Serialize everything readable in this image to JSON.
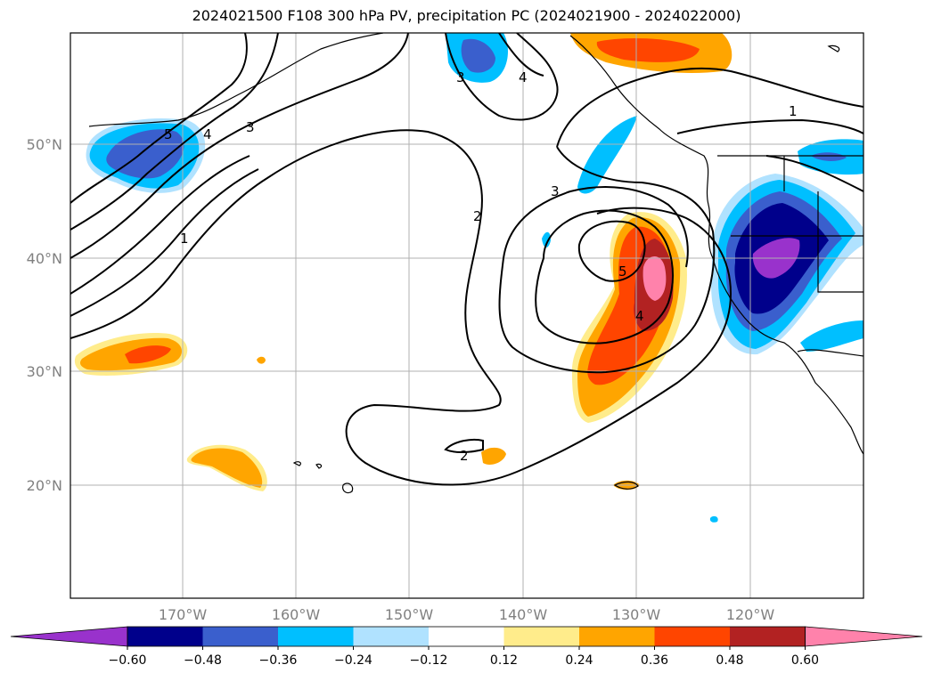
{
  "title": "2024021500 F108 300 hPa PV, precipitation PC (2024021900 - 2024022000)",
  "lat_labels": [
    "50°N",
    "40°N",
    "30°N",
    "20°N"
  ],
  "lon_labels": [
    "170°W",
    "160°W",
    "150°W",
    "140°W",
    "130°W",
    "120°W"
  ],
  "contour_labels": [
    "5",
    "4",
    "3",
    "1",
    "2",
    "3",
    "4",
    "3",
    "4",
    "5",
    "2",
    "1"
  ],
  "colorbar": {
    "ticks": [
      "−0.60",
      "−0.48",
      "−0.36",
      "−0.24",
      "−0.12",
      "0.12",
      "0.24",
      "0.36",
      "0.48",
      "0.60"
    ],
    "colors": [
      "#9932cc",
      "#00008b",
      "#3a5fcd",
      "#00bfff",
      "#b0e2ff",
      "#ffffff",
      "#ffec8b",
      "#ffa500",
      "#ff4500",
      "#b22222",
      "#ff82ab"
    ]
  }
}
